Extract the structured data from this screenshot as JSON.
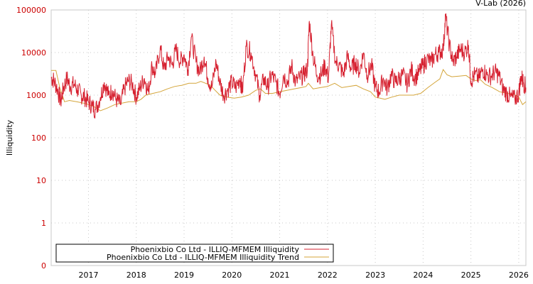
{
  "credit": "V-Lab (2026)",
  "chart_data": {
    "type": "line",
    "title": "",
    "xlabel": "",
    "ylabel": "Illiquidity",
    "yscale": "log",
    "ylim": [
      0,
      100000
    ],
    "y_ticks": [
      "100000",
      "10000",
      "1000",
      "100",
      "10",
      "1",
      "0"
    ],
    "x_ticks": [
      "2017",
      "2018",
      "2019",
      "2020",
      "2021",
      "2022",
      "2023",
      "2024",
      "2025",
      "2026"
    ],
    "xlim": [
      2016.22,
      2026.15
    ],
    "grid": true,
    "legend_position": "bottom-left inside",
    "colors": {
      "illiquidity": "#d62130",
      "trend": "#d4a53a",
      "tick_label": "#cc0000"
    },
    "series": [
      {
        "name": "Phoenixbio Co Ltd - ILLIQ-MFMEM Illiquidity",
        "x": [
          2016.22,
          2016.28,
          2016.35,
          2016.42,
          2016.48,
          2016.55,
          2016.62,
          2016.7,
          2016.78,
          2016.85,
          2016.92,
          2017.0,
          2017.08,
          2017.15,
          2017.25,
          2017.33,
          2017.42,
          2017.5,
          2017.58,
          2017.67,
          2017.75,
          2017.83,
          2017.92,
          2018.0,
          2018.08,
          2018.17,
          2018.25,
          2018.33,
          2018.4,
          2018.5,
          2018.58,
          2018.67,
          2018.75,
          2018.83,
          2018.92,
          2019.0,
          2019.08,
          2019.15,
          2019.25,
          2019.33,
          2019.42,
          2019.5,
          2019.58,
          2019.67,
          2019.75,
          2019.83,
          2019.92,
          2020.0,
          2020.08,
          2020.17,
          2020.22,
          2020.3,
          2020.4,
          2020.5,
          2020.58,
          2020.67,
          2020.75,
          2020.83,
          2020.92,
          2021.0,
          2021.08,
          2021.17,
          2021.25,
          2021.33,
          2021.42,
          2021.5,
          2021.58,
          2021.62,
          2021.7,
          2021.78,
          2021.87,
          2021.95,
          2022.02,
          2022.08,
          2022.17,
          2022.25,
          2022.33,
          2022.42,
          2022.5,
          2022.58,
          2022.67,
          2022.75,
          2022.83,
          2022.92,
          2023.0,
          2023.08,
          2023.17,
          2023.25,
          2023.33,
          2023.42,
          2023.5,
          2023.58,
          2023.67,
          2023.75,
          2023.83,
          2023.92,
          2024.0,
          2024.08,
          2024.17,
          2024.25,
          2024.33,
          2024.42,
          2024.47,
          2024.55,
          2024.62,
          2024.7,
          2024.78,
          2024.87,
          2024.95,
          2025.0,
          2025.08,
          2025.17,
          2025.25,
          2025.33,
          2025.42,
          2025.5,
          2025.58,
          2025.67,
          2025.75,
          2025.83,
          2025.92,
          2026.0,
          2026.05,
          2026.1,
          2026.15
        ],
        "y": [
          2600,
          2200,
          1400,
          700,
          1500,
          2500,
          1600,
          1800,
          1300,
          1000,
          900,
          700,
          550,
          450,
          900,
          2000,
          1000,
          1300,
          800,
          600,
          1400,
          2200,
          1800,
          900,
          1500,
          2500,
          1200,
          5000,
          3000,
          13000,
          4000,
          8000,
          5000,
          12000,
          6000,
          9000,
          4000,
          23000,
          6000,
          3500,
          8000,
          2500,
          1500,
          6000,
          2000,
          1000,
          1400,
          2000,
          1500,
          2500,
          1200,
          14000,
          10000,
          3000,
          1000,
          2500,
          1500,
          3000,
          2000,
          1100,
          3000,
          2000,
          5000,
          2000,
          2500,
          3000,
          4000,
          55000,
          8000,
          3000,
          3000,
          5000,
          2500,
          45000,
          6000,
          5000,
          3000,
          8000,
          4000,
          6000,
          3500,
          10000,
          3000,
          5000,
          1500,
          1200,
          2500,
          1400,
          3000,
          2000,
          2500,
          3000,
          1800,
          4000,
          2500,
          3500,
          5000,
          7000,
          6000,
          9000,
          10000,
          12000,
          70000,
          15000,
          6000,
          8000,
          12000,
          10000,
          15000,
          2200,
          3000,
          2500,
          4000,
          3000,
          2800,
          3500,
          3000,
          1400,
          1100,
          900,
          800,
          1100,
          2800,
          2000,
          1500
        ]
      },
      {
        "name": "Phoenixbio Co Ltd - ILLIQ-MFMEM Illiquidity Trend",
        "x": [
          2016.22,
          2016.32,
          2016.4,
          2016.5,
          2016.6,
          2016.75,
          2016.9,
          2017.0,
          2017.1,
          2017.25,
          2017.4,
          2017.55,
          2017.7,
          2017.85,
          2018.0,
          2018.1,
          2018.2,
          2018.35,
          2018.5,
          2018.65,
          2018.8,
          2018.95,
          2019.1,
          2019.25,
          2019.35,
          2019.45,
          2019.55,
          2019.65,
          2019.75,
          2019.9,
          2020.05,
          2020.2,
          2020.35,
          2020.5,
          2020.6,
          2020.7,
          2020.85,
          2021.0,
          2021.15,
          2021.3,
          2021.45,
          2021.55,
          2021.6,
          2021.7,
          2021.85,
          2022.0,
          2022.15,
          2022.3,
          2022.45,
          2022.6,
          2022.75,
          2022.9,
          2023.0,
          2023.1,
          2023.2,
          2023.35,
          2023.5,
          2023.65,
          2023.8,
          2023.95,
          2024.1,
          2024.25,
          2024.35,
          2024.42,
          2024.5,
          2024.6,
          2024.75,
          2024.9,
          2025.0,
          2025.1,
          2025.2,
          2025.3,
          2025.45,
          2025.6,
          2025.75,
          2025.9,
          2026.0,
          2026.08,
          2026.15
        ],
        "y": [
          3800,
          3800,
          1500,
          700,
          750,
          700,
          650,
          600,
          550,
          430,
          500,
          600,
          650,
          700,
          700,
          800,
          1000,
          1100,
          1200,
          1400,
          1600,
          1700,
          1900,
          1900,
          2100,
          1900,
          1700,
          1300,
          1000,
          900,
          850,
          900,
          1000,
          1300,
          1400,
          1100,
          1100,
          1200,
          1300,
          1400,
          1500,
          1600,
          1900,
          1400,
          1500,
          1600,
          1900,
          1500,
          1600,
          1700,
          1400,
          1200,
          900,
          850,
          800,
          900,
          1000,
          1000,
          1000,
          1100,
          1500,
          2000,
          2400,
          4000,
          3000,
          2700,
          2800,
          2900,
          2400,
          2200,
          2300,
          1800,
          1500,
          1200,
          1100,
          1050,
          900,
          600,
          700
        ]
      }
    ]
  },
  "legend": {
    "items": [
      {
        "label": "Phoenixbio Co Ltd - ILLIQ-MFMEM Illiquidity",
        "color": "#d62130"
      },
      {
        "label": "Phoenixbio Co Ltd - ILLIQ-MFMEM Illiquidity Trend",
        "color": "#d4a53a"
      }
    ]
  }
}
